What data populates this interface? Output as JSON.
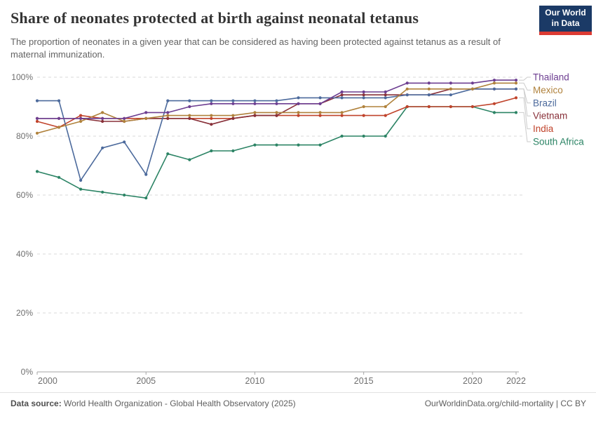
{
  "header": {
    "title": "Share of neonates protected at birth against neonatal tetanus",
    "subtitle": "The proportion of neonates in a given year that can be considered as having been protected against tetanus as a result of maternal immunization.",
    "logo": {
      "line1": "Our World",
      "line2": "in Data",
      "bg_color": "#1b3a66",
      "accent_color": "#dc3b33"
    }
  },
  "chart_data": {
    "type": "line",
    "title": "Share of neonates protected at birth against neonatal tetanus",
    "x": [
      2000,
      2001,
      2002,
      2003,
      2004,
      2005,
      2006,
      2007,
      2008,
      2009,
      2010,
      2011,
      2012,
      2013,
      2014,
      2015,
      2016,
      2017,
      2018,
      2019,
      2020,
      2021,
      2022
    ],
    "x_ticks": [
      2000,
      2005,
      2010,
      2015,
      2020,
      2022
    ],
    "y_ticks": [
      0,
      20,
      40,
      60,
      80,
      100
    ],
    "y_tick_suffix": "%",
    "ylim": [
      0,
      100
    ],
    "xlabel": "",
    "ylabel": "",
    "grid": "dashed-horizontal",
    "legend_position": "right",
    "series": [
      {
        "name": "Thailand",
        "color": "#6d3e91",
        "values": [
          86,
          86,
          86,
          86,
          86,
          88,
          88,
          90,
          91,
          91,
          91,
          91,
          91,
          91,
          95,
          95,
          95,
          98,
          98,
          98,
          98,
          99,
          99
        ]
      },
      {
        "name": "Mexico",
        "color": "#b0823c",
        "values": [
          81,
          83,
          85,
          88,
          85,
          86,
          87,
          87,
          87,
          87,
          88,
          88,
          88,
          88,
          88,
          90,
          90,
          96,
          96,
          96,
          96,
          98,
          98
        ]
      },
      {
        "name": "Brazil",
        "color": "#4c6a9c",
        "values": [
          92,
          92,
          65,
          76,
          78,
          67,
          92,
          92,
          92,
          92,
          92,
          92,
          93,
          93,
          93,
          93,
          93,
          94,
          94,
          94,
          96,
          96,
          96
        ]
      },
      {
        "name": "Vietnam",
        "color": "#883039",
        "values": [
          86,
          86,
          86,
          85,
          85,
          86,
          86,
          86,
          84,
          86,
          87,
          87,
          91,
          91,
          94,
          94,
          94,
          94,
          94,
          96,
          96,
          96,
          96
        ]
      },
      {
        "name": "India",
        "color": "#c0432b",
        "values": [
          85,
          83,
          87,
          86,
          86,
          86,
          86,
          86,
          86,
          86,
          87,
          87,
          87,
          87,
          87,
          87,
          87,
          90,
          90,
          90,
          90,
          91,
          93
        ]
      },
      {
        "name": "South Africa",
        "color": "#2c8465",
        "values": [
          68,
          66,
          62,
          61,
          60,
          59,
          74,
          72,
          75,
          75,
          77,
          77,
          77,
          77,
          80,
          80,
          80,
          90,
          90,
          90,
          90,
          88,
          88
        ]
      }
    ]
  },
  "footer": {
    "source_label": "Data source:",
    "source_text": " World Health Organization - Global Health Observatory (2025)",
    "link_text": "OurWorldinData.org/child-mortality | CC BY"
  }
}
